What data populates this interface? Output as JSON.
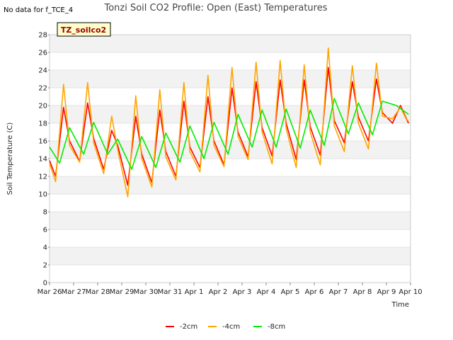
{
  "page": {
    "note": "No data for f_TCE_4",
    "badge": "TZ_soilco2"
  },
  "chart_data": {
    "type": "line",
    "title": "Tonzi Soil CO2 Profile: Open (East) Temperatures",
    "xlabel": "Time",
    "ylabel": "Soil Temperature (C)",
    "ylim": [
      0,
      28
    ],
    "yticks": [
      0,
      2,
      4,
      6,
      8,
      10,
      12,
      14,
      16,
      18,
      20,
      22,
      24,
      26,
      28
    ],
    "xlim": [
      "2024-03-26",
      "2024-04-10"
    ],
    "xticks": [
      "Mar 26",
      "Mar 27",
      "Mar 28",
      "Mar 29",
      "Mar 30",
      "Mar 31",
      "Apr 1",
      "Apr 2",
      "Apr 3",
      "Apr 4",
      "Apr 5",
      "Apr 6",
      "Apr 7",
      "Apr 8",
      "Apr 9",
      "Apr 10"
    ],
    "grid": "horizontal bands",
    "legend_position": "bottom-center",
    "daily_points_order": "for each day Mar 26 .. Apr 9: min-morning (~06:00), peak (~14:00), late (~20:00)",
    "series": [
      {
        "name": "-2cm",
        "color": "#ff0000",
        "x": [
          "2024-03-26 00:00",
          "2024-03-26 06:00",
          "2024-03-26 14:00",
          "2024-03-26 20:00",
          "2024-03-27 06:00",
          "2024-03-27 14:00",
          "2024-03-27 20:00",
          "2024-03-28 06:00",
          "2024-03-28 14:00",
          "2024-03-28 20:00",
          "2024-03-29 06:00",
          "2024-03-29 14:00",
          "2024-03-29 20:00",
          "2024-03-30 06:00",
          "2024-03-30 14:00",
          "2024-03-30 20:00",
          "2024-03-31 06:00",
          "2024-03-31 14:00",
          "2024-03-31 20:00",
          "2024-04-01 06:00",
          "2024-04-01 14:00",
          "2024-04-01 20:00",
          "2024-04-02 06:00",
          "2024-04-02 14:00",
          "2024-04-02 20:00",
          "2024-04-03 06:00",
          "2024-04-03 14:00",
          "2024-04-03 20:00",
          "2024-04-04 06:00",
          "2024-04-04 14:00",
          "2024-04-04 20:00",
          "2024-04-05 06:00",
          "2024-04-05 14:00",
          "2024-04-05 20:00",
          "2024-04-06 06:00",
          "2024-04-06 14:00",
          "2024-04-06 20:00",
          "2024-04-07 06:00",
          "2024-04-07 14:00",
          "2024-04-07 20:00",
          "2024-04-08 06:00",
          "2024-04-08 14:00",
          "2024-04-08 20:00",
          "2024-04-09 06:00",
          "2024-04-09 14:00",
          "2024-04-09 20:00",
          "2024-04-09 22:00"
        ],
        "y": [
          13.8,
          12.0,
          19.8,
          16.0,
          13.7,
          20.3,
          16.3,
          12.8,
          17.2,
          15.5,
          11.0,
          18.8,
          14.5,
          11.3,
          19.5,
          14.8,
          12.0,
          20.5,
          15.3,
          13.0,
          21.0,
          16.0,
          13.3,
          22.0,
          17.0,
          14.2,
          22.7,
          17.5,
          14.3,
          22.9,
          18.0,
          13.9,
          22.9,
          17.6,
          14.4,
          24.3,
          18.3,
          15.8,
          22.7,
          18.7,
          16.0,
          23.0,
          19.2,
          18.0,
          20.0,
          18.5,
          18.0
        ]
      },
      {
        "name": "-4cm",
        "color": "#ffa500",
        "x": [
          "2024-03-26 00:00",
          "2024-03-26 06:00",
          "2024-03-26 14:00",
          "2024-03-26 20:00",
          "2024-03-27 06:00",
          "2024-03-27 14:00",
          "2024-03-27 20:00",
          "2024-03-28 06:00",
          "2024-03-28 14:00",
          "2024-03-28 20:00",
          "2024-03-29 06:00",
          "2024-03-29 14:00",
          "2024-03-29 20:00",
          "2024-03-30 06:00",
          "2024-03-30 14:00",
          "2024-03-30 20:00",
          "2024-03-31 06:00",
          "2024-03-31 14:00",
          "2024-03-31 20:00",
          "2024-04-01 06:00",
          "2024-04-01 14:00",
          "2024-04-01 20:00",
          "2024-04-02 06:00",
          "2024-04-02 14:00",
          "2024-04-02 20:00",
          "2024-04-03 06:00",
          "2024-04-03 14:00",
          "2024-04-03 20:00",
          "2024-04-04 06:00",
          "2024-04-04 14:00",
          "2024-04-04 20:00",
          "2024-04-05 06:00",
          "2024-04-05 14:00",
          "2024-04-05 20:00",
          "2024-04-06 06:00",
          "2024-04-06 14:00",
          "2024-04-06 20:00",
          "2024-04-07 06:00",
          "2024-04-07 14:00",
          "2024-04-07 20:00",
          "2024-04-08 06:00",
          "2024-04-08 14:00",
          "2024-04-08 20:00",
          "2024-04-09 06:00",
          "2024-04-09 14:00",
          "2024-04-09 20:00",
          "2024-04-09 22:00"
        ],
        "y": [
          13.5,
          11.4,
          22.4,
          15.5,
          13.6,
          22.6,
          15.8,
          12.3,
          18.8,
          15.0,
          9.7,
          21.1,
          14.0,
          10.8,
          21.8,
          14.2,
          11.6,
          22.6,
          14.8,
          12.5,
          23.4,
          15.5,
          13.1,
          24.3,
          16.5,
          13.9,
          24.9,
          17.0,
          13.4,
          25.1,
          17.4,
          13.0,
          24.6,
          17.0,
          13.3,
          26.5,
          17.7,
          14.8,
          24.5,
          18.0,
          15.1,
          24.8,
          18.8,
          18.5,
          19.8,
          18.4,
          18.3
        ]
      },
      {
        "name": "-8cm",
        "color": "#00ee00",
        "x": [
          "2024-03-26 00:00",
          "2024-03-26 10:00",
          "2024-03-26 20:00",
          "2024-03-27 10:00",
          "2024-03-27 20:00",
          "2024-03-28 10:00",
          "2024-03-28 20:00",
          "2024-03-29 10:00",
          "2024-03-29 20:00",
          "2024-03-30 10:00",
          "2024-03-30 20:00",
          "2024-03-31 10:00",
          "2024-03-31 20:00",
          "2024-04-01 10:00",
          "2024-04-01 20:00",
          "2024-04-02 10:00",
          "2024-04-02 20:00",
          "2024-04-03 10:00",
          "2024-04-03 20:00",
          "2024-04-04 10:00",
          "2024-04-04 20:00",
          "2024-04-05 10:00",
          "2024-04-05 20:00",
          "2024-04-06 10:00",
          "2024-04-06 20:00",
          "2024-04-07 10:00",
          "2024-04-07 20:00",
          "2024-04-08 10:00",
          "2024-04-08 20:00",
          "2024-04-09 10:00",
          "2024-04-09 22:00"
        ],
        "y": [
          15.3,
          13.5,
          17.5,
          14.5,
          18.1,
          14.5,
          16.2,
          12.8,
          16.5,
          13.0,
          16.9,
          13.6,
          17.7,
          14.0,
          18.1,
          14.5,
          19.0,
          15.3,
          19.5,
          15.3,
          19.6,
          15.2,
          19.5,
          15.5,
          20.8,
          16.8,
          20.3,
          16.7,
          20.5,
          20.0,
          19.0
        ]
      }
    ]
  }
}
